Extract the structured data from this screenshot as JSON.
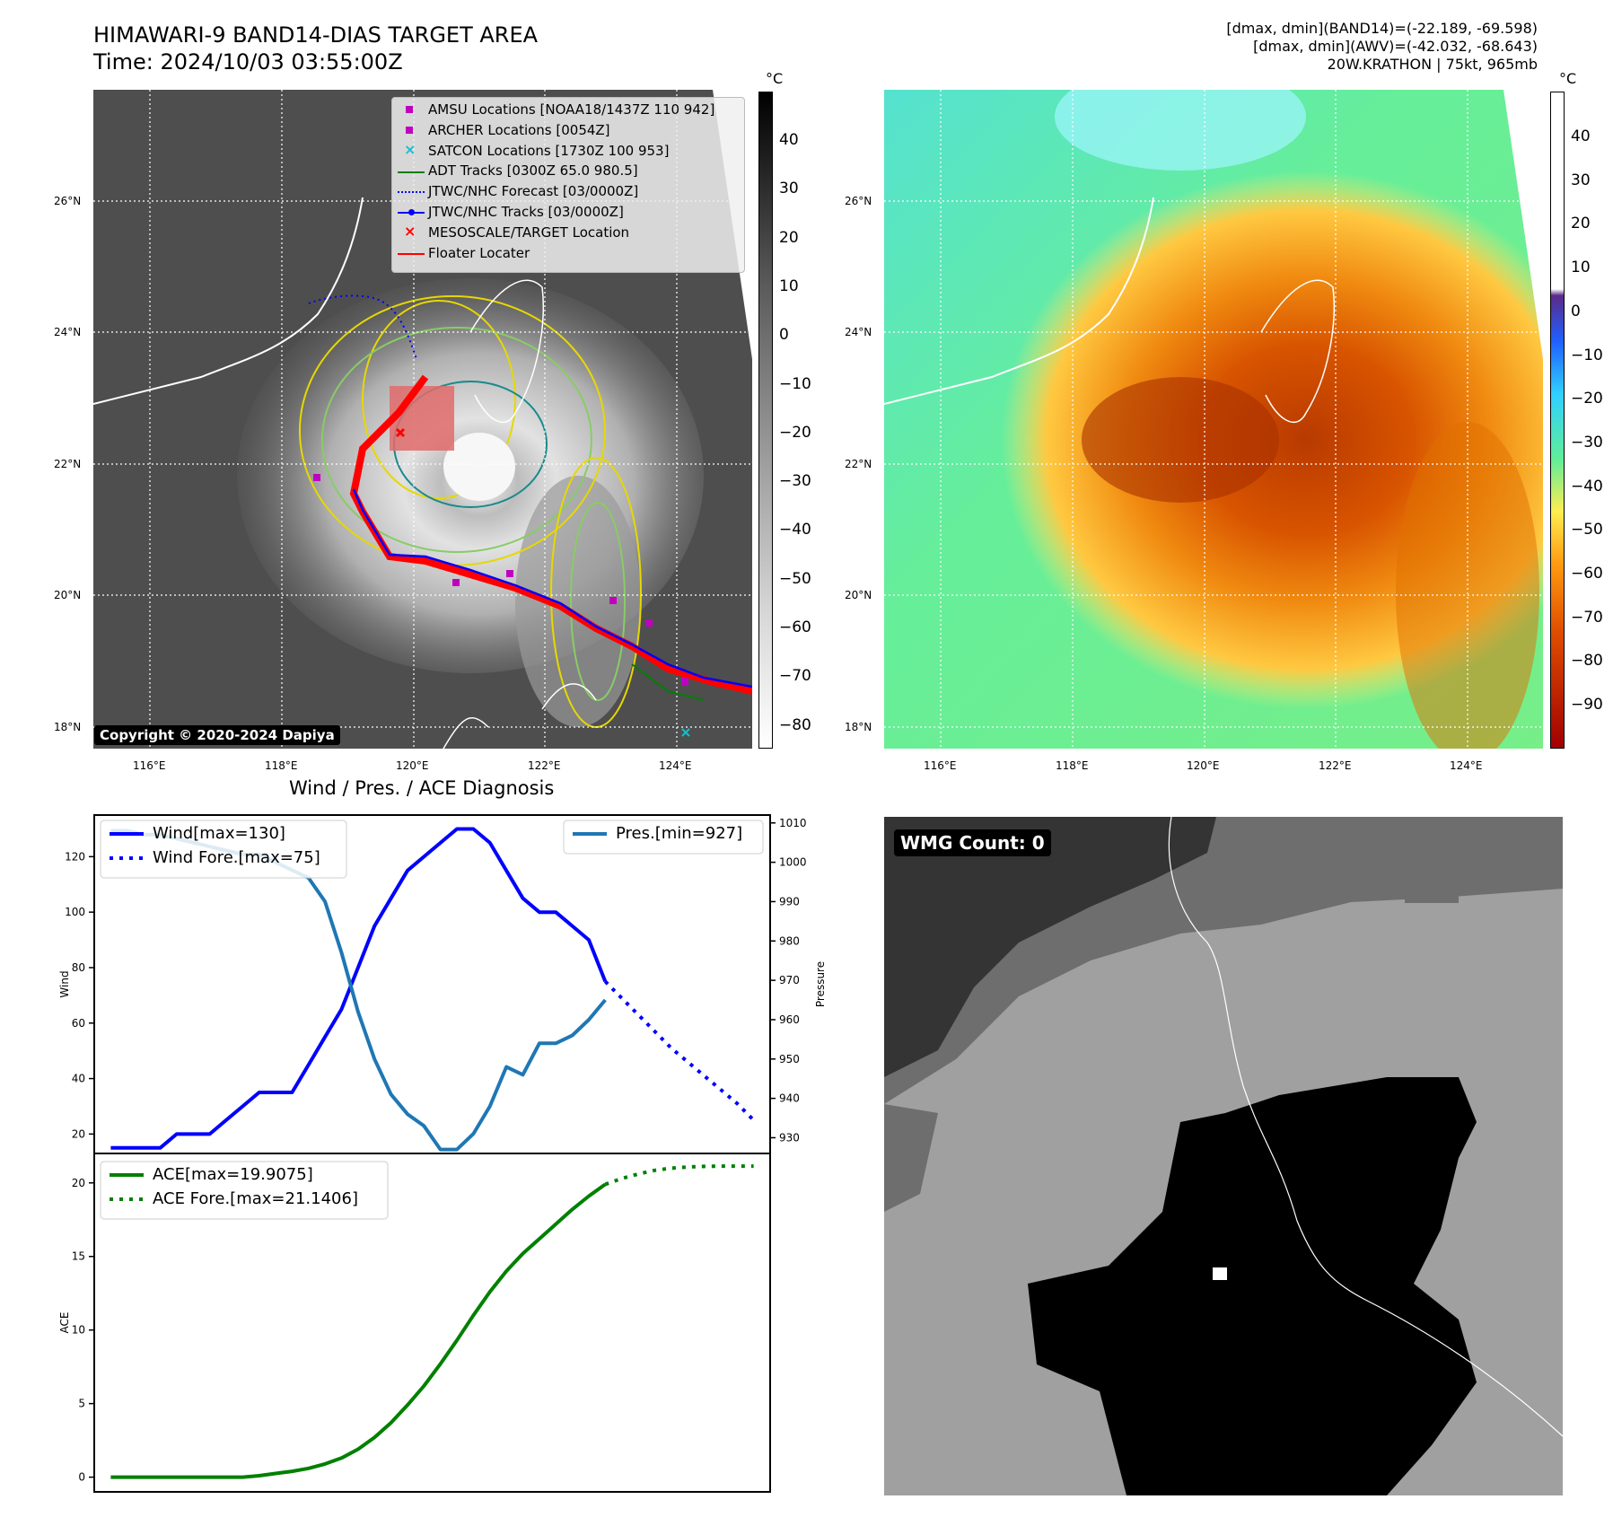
{
  "header": {
    "title_line1": "HIMAWARI-9 BAND14-DIAS TARGET AREA",
    "title_line2": "Time: 2024/10/03 03:55:00Z",
    "info_line1": "[dmax, dmin](BAND14)=(-22.189, -69.598)",
    "info_line2": "[dmax, dmin](AWV)=(-42.032, -68.643)",
    "info_line3": "20W.KRATHON | 75kt, 965mb"
  },
  "maps": {
    "lat_labels": [
      "26°N",
      "24°N",
      "22°N",
      "20°N",
      "18°N"
    ],
    "lon_labels": [
      "116°E",
      "118°E",
      "120°E",
      "122°E",
      "124°E"
    ],
    "unit": "°C",
    "ir_colorbar_ticks": [
      "40",
      "30",
      "20",
      "10",
      "0",
      "−10",
      "−20",
      "−30",
      "−40",
      "−50",
      "−60",
      "−70",
      "−80"
    ],
    "awv_colorbar_ticks": [
      "40",
      "30",
      "20",
      "10",
      "0",
      "−10",
      "−20",
      "−30",
      "−40",
      "−50",
      "−60",
      "−70",
      "−80",
      "−90"
    ],
    "copyright": "Copyright © 2020-2024 Dapiya",
    "legend": [
      {
        "label": "AMSU Locations [NOAA18/1437Z 110 942]",
        "symbol": "square",
        "color": "#c000c0"
      },
      {
        "label": "ARCHER Locations [0054Z]",
        "symbol": "square",
        "color": "#c000c0"
      },
      {
        "label": "SATCON Locations [1730Z 100 953]",
        "symbol": "x",
        "color": "#17becf"
      },
      {
        "label": "ADT Tracks [0300Z 65.0 980.5]",
        "symbol": "line",
        "color": "#008000"
      },
      {
        "label": "JTWC/NHC Forecast [03/0000Z]",
        "symbol": "dotted",
        "color": "#0000ff"
      },
      {
        "label": "JTWC/NHC Tracks [03/0000Z]",
        "symbol": "line-dot",
        "color": "#0000ff"
      },
      {
        "label": "MESOSCALE/TARGET Location",
        "symbol": "x",
        "color": "#ff0000"
      },
      {
        "label": "Floater Locater",
        "symbol": "line",
        "color": "#ff0000"
      }
    ],
    "wmg_label": "WMG Count: 0",
    "colors": {
      "magenta": "#c000c0",
      "cyan": "#17becf",
      "green": "#008000",
      "blue": "#0000ff",
      "red": "#ff0000"
    }
  },
  "chart_data": [
    {
      "type": "line",
      "title": "Wind / Pres. / ACE Diagnosis",
      "ylabel": "Wind",
      "ylabel_right": "Pressure",
      "x": [
        0,
        1,
        2,
        3,
        4,
        5,
        6,
        7,
        8,
        9,
        10,
        11,
        12,
        13,
        14,
        15,
        16,
        17,
        18,
        19,
        20,
        21,
        22,
        23,
        24,
        25,
        26,
        27,
        28,
        29,
        30,
        31,
        32,
        33,
        34,
        35,
        36,
        37,
        38,
        39
      ],
      "xlim": [
        -1,
        40
      ],
      "ylim": [
        13,
        135
      ],
      "ylim_right": [
        926,
        1012
      ],
      "yticks": [
        20,
        40,
        60,
        80,
        100,
        120
      ],
      "yticks_right": [
        930,
        940,
        950,
        960,
        970,
        980,
        990,
        1000,
        1010
      ],
      "series": [
        {
          "name": "Wind[max=130]",
          "axis": "left",
          "color": "#0000ff",
          "style": "solid",
          "x": [
            0,
            1,
            2,
            3,
            4,
            5,
            6,
            7,
            8,
            9,
            10,
            11,
            12,
            13,
            14,
            15,
            16,
            17,
            18,
            19,
            20,
            21,
            22,
            23,
            24,
            25,
            26,
            27,
            28,
            29,
            30
          ],
          "values": [
            15,
            15,
            15,
            15,
            20,
            20,
            20,
            25,
            30,
            35,
            35,
            35,
            45,
            55,
            65,
            80,
            95,
            105,
            115,
            120,
            125,
            130,
            130,
            125,
            115,
            105,
            100,
            100,
            95,
            90,
            75
          ]
        },
        {
          "name": "Wind Fore.[max=75]",
          "axis": "left",
          "color": "#0000ff",
          "style": "dotted",
          "x": [
            30,
            31,
            32,
            33,
            34,
            35,
            36,
            37,
            38,
            39
          ],
          "values": [
            75,
            69,
            63,
            57,
            51,
            46,
            41,
            36,
            31,
            25
          ]
        },
        {
          "name": "Pres.[min=927]",
          "axis": "right",
          "color": "#1f77b4",
          "style": "solid",
          "x": [
            0,
            1,
            2,
            3,
            4,
            5,
            6,
            7,
            8,
            9,
            10,
            11,
            12,
            13,
            14,
            15,
            16,
            17,
            18,
            19,
            20,
            21,
            22,
            23,
            24,
            25,
            26,
            27,
            28,
            29,
            30
          ],
          "values": [
            1008,
            1008,
            1007,
            1007,
            1006,
            1005,
            1004,
            1003,
            1002,
            1002,
            1000,
            998,
            996,
            990,
            977,
            962,
            950,
            941,
            936,
            933,
            927,
            927,
            931,
            938,
            948,
            946,
            954,
            954,
            956,
            960,
            965
          ]
        }
      ]
    },
    {
      "type": "line",
      "ylabel": "ACE",
      "x": [
        0,
        1,
        2,
        3,
        4,
        5,
        6,
        7,
        8,
        9,
        10,
        11,
        12,
        13,
        14,
        15,
        16,
        17,
        18,
        19,
        20,
        21,
        22,
        23,
        24,
        25,
        26,
        27,
        28,
        29,
        30,
        31,
        32,
        33,
        34,
        35,
        36,
        37,
        38,
        39
      ],
      "xlim": [
        -1,
        40
      ],
      "ylim": [
        -1,
        22
      ],
      "yticks": [
        0,
        5,
        10,
        15,
        20
      ],
      "series": [
        {
          "name": "ACE[max=19.9075]",
          "color": "#008000",
          "style": "solid",
          "x": [
            0,
            1,
            2,
            3,
            4,
            5,
            6,
            7,
            8,
            9,
            10,
            11,
            12,
            13,
            14,
            15,
            16,
            17,
            18,
            19,
            20,
            21,
            22,
            23,
            24,
            25,
            26,
            27,
            28,
            29,
            30
          ],
          "values": [
            0,
            0,
            0,
            0,
            0,
            0,
            0,
            0,
            0,
            0.1,
            0.25,
            0.4,
            0.6,
            0.9,
            1.3,
            1.9,
            2.7,
            3.7,
            4.9,
            6.2,
            7.7,
            9.3,
            11.0,
            12.6,
            14.0,
            15.2,
            16.2,
            17.2,
            18.2,
            19.1,
            19.9
          ]
        },
        {
          "name": "ACE Fore.[max=21.1406]",
          "color": "#008000",
          "style": "dotted",
          "x": [
            30,
            31,
            32,
            33,
            34,
            35,
            36,
            37,
            38,
            39
          ],
          "values": [
            19.9,
            20.3,
            20.6,
            20.85,
            21.0,
            21.08,
            21.12,
            21.14,
            21.14,
            21.14
          ]
        }
      ]
    }
  ]
}
